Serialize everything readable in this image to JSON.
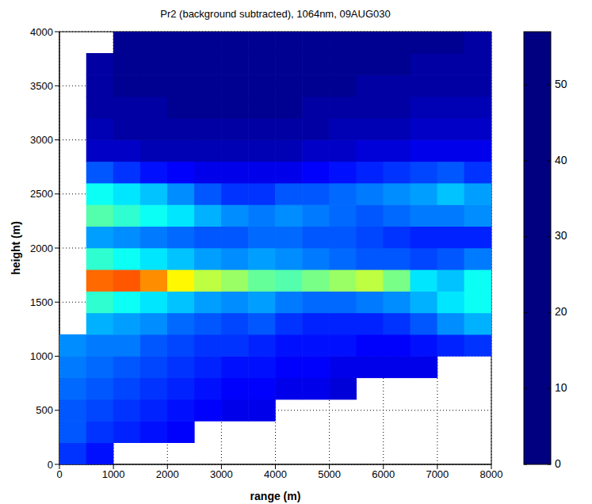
{
  "chart_data": {
    "type": "heatmap",
    "title": "Pr2 (background subtracted), 1064nm, 09AUG030",
    "x_label": "range (m)",
    "y_label": "height (m)",
    "xlim": [
      0,
      8000
    ],
    "ylim": [
      0,
      4000
    ],
    "xticks": [
      0,
      1000,
      2000,
      3000,
      4000,
      5000,
      6000,
      7000,
      8000
    ],
    "yticks": [
      0,
      500,
      1000,
      1500,
      2000,
      2500,
      3000,
      3500,
      4000
    ],
    "grid": true,
    "x": [
      250,
      750,
      1250,
      1750,
      2250,
      2750,
      3250,
      3750,
      4250,
      4750,
      5250,
      5750,
      6250,
      6750,
      7250,
      7750
    ],
    "y": [
      100,
      300,
      500,
      700,
      900,
      1100,
      1300,
      1500,
      1700,
      1900,
      2100,
      2300,
      2500,
      2700,
      2900,
      3100,
      3300,
      3500,
      3700,
      3900
    ],
    "z": [
      [
        10,
        8,
        null,
        null,
        null,
        null,
        null,
        null,
        null,
        null,
        null,
        null,
        null,
        null,
        null,
        null
      ],
      [
        12,
        10,
        9,
        8,
        7,
        null,
        null,
        null,
        null,
        null,
        null,
        null,
        null,
        null,
        null,
        null
      ],
      [
        12,
        11,
        10,
        9,
        8,
        7,
        6,
        6,
        null,
        null,
        null,
        null,
        null,
        null,
        null,
        null
      ],
      [
        13,
        12,
        11,
        10,
        9,
        8,
        7,
        7,
        6,
        6,
        5,
        null,
        null,
        null,
        null,
        null
      ],
      [
        14,
        13,
        12,
        11,
        10,
        9,
        8,
        8,
        7,
        7,
        6,
        6,
        6,
        6,
        null,
        null
      ],
      [
        15,
        14,
        14,
        12,
        11,
        10,
        10,
        9,
        8,
        8,
        8,
        7,
        7,
        8,
        9,
        10
      ],
      [
        null,
        17,
        16,
        15,
        13,
        12,
        11,
        12,
        10,
        9,
        9,
        9,
        10,
        12,
        15,
        17
      ],
      [
        null,
        24,
        22,
        20,
        18,
        16,
        15,
        16,
        14,
        13,
        13,
        14,
        15,
        17,
        20,
        22
      ],
      [
        null,
        44,
        45,
        42,
        36,
        32,
        30,
        27,
        26,
        28,
        30,
        32,
        28,
        20,
        18,
        22
      ],
      [
        null,
        24,
        22,
        20,
        18,
        16,
        15,
        16,
        15,
        14,
        13,
        12,
        12,
        11,
        12,
        14
      ],
      [
        null,
        16,
        15,
        14,
        13,
        12,
        12,
        13,
        13,
        12,
        12,
        11,
        10,
        9,
        9,
        9
      ],
      [
        null,
        26,
        24,
        22,
        20,
        17,
        15,
        14,
        15,
        14,
        13,
        12,
        13,
        14,
        14,
        15
      ],
      [
        null,
        22,
        20,
        18,
        15,
        12,
        10,
        10,
        12,
        12,
        13,
        14,
        15,
        16,
        18,
        16
      ],
      [
        null,
        12,
        10,
        8,
        7,
        6,
        6,
        6,
        6,
        7,
        8,
        9,
        10,
        11,
        12,
        10
      ],
      [
        null,
        4,
        4,
        3,
        3,
        3,
        3,
        3,
        3,
        4,
        4,
        5,
        5,
        6,
        6,
        6
      ],
      [
        null,
        3,
        2,
        2,
        2,
        2,
        2,
        2,
        2,
        2,
        3,
        3,
        3,
        4,
        4,
        4
      ],
      [
        null,
        2,
        2,
        2,
        1,
        1,
        1,
        1,
        1,
        2,
        2,
        2,
        2,
        3,
        3,
        3
      ],
      [
        null,
        2,
        1,
        1,
        1,
        1,
        1,
        1,
        1,
        1,
        1,
        2,
        2,
        2,
        2,
        2
      ],
      [
        null,
        2,
        1,
        1,
        1,
        1,
        1,
        1,
        1,
        1,
        1,
        1,
        1,
        2,
        2,
        2
      ],
      [
        null,
        null,
        1,
        1,
        1,
        1,
        1,
        1,
        1,
        1,
        1,
        1,
        1,
        1,
        1,
        2
      ]
    ],
    "colorbar": {
      "range": [
        0,
        57
      ],
      "ticks": [
        0,
        10,
        20,
        30,
        40,
        50
      ]
    }
  }
}
